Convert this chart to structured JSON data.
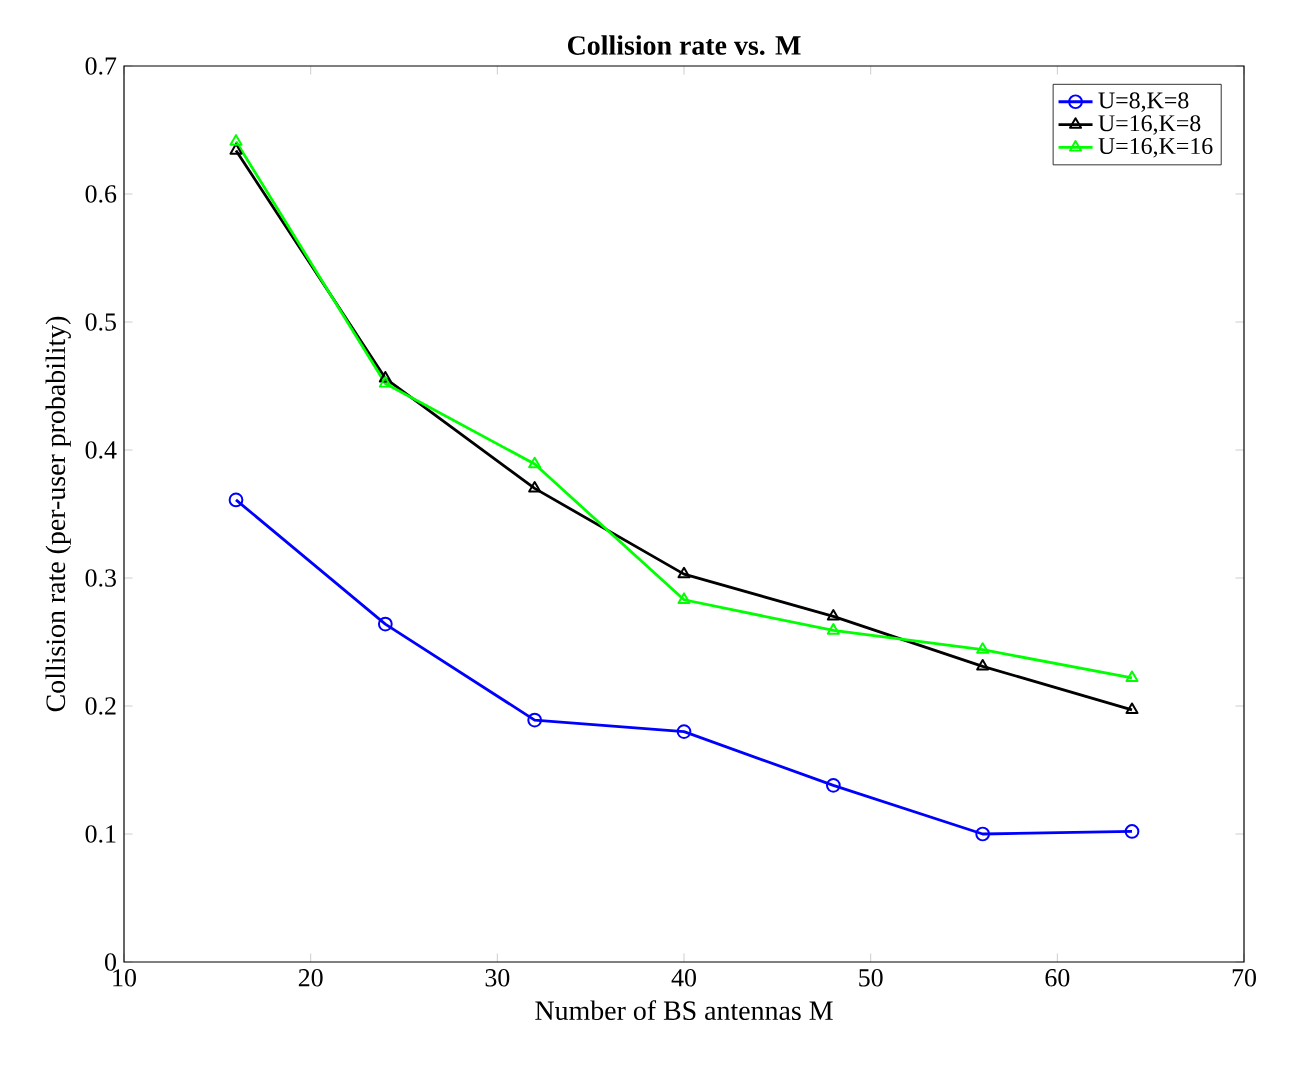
{
  "chart_data": {
    "type": "line",
    "title": "Collision rate vs. M",
    "xlabel": "Number of BS antennas M",
    "ylabel": "Collision rate (per-user probability)",
    "x": [
      16,
      24,
      32,
      40,
      48,
      56,
      64
    ],
    "series": [
      {
        "name": "U=8,K=8",
        "color": "#0000ff",
        "marker": "circle",
        "values": [
          0.361,
          0.264,
          0.189,
          0.18,
          0.138,
          0.1,
          0.102
        ]
      },
      {
        "name": "U=16,K=8",
        "color": "#000000",
        "marker": "triangle",
        "values": [
          0.634,
          0.456,
          0.37,
          0.303,
          0.27,
          0.231,
          0.197
        ]
      },
      {
        "name": "U=16,K=16",
        "color": "#00ff00",
        "marker": "triangle",
        "values": [
          0.641,
          0.452,
          0.389,
          0.283,
          0.259,
          0.244,
          0.222
        ]
      }
    ],
    "xlim": [
      10,
      70
    ],
    "xticks": [
      10,
      20,
      30,
      40,
      50,
      60,
      70
    ],
    "ylim": [
      0,
      0.7
    ],
    "yticks": [
      0,
      0.1,
      0.2,
      0.3,
      0.4,
      0.5,
      0.6,
      0.7
    ],
    "grid": false,
    "legend": "top right",
    "line_style": "solid"
  }
}
